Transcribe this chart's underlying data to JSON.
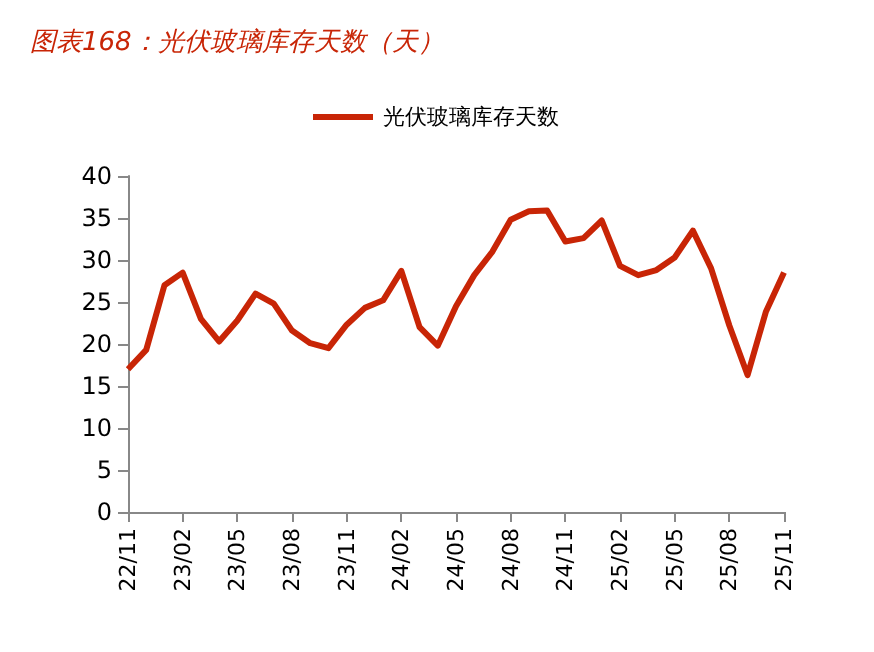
{
  "chart_data": {
    "type": "line",
    "title": "图表168：光伏玻璃库存天数（天）",
    "categories": [
      "22/11",
      null,
      null,
      "23/02",
      null,
      null,
      "23/05",
      null,
      null,
      "23/08",
      null,
      null,
      "23/11",
      null,
      null,
      "24/02",
      null,
      null,
      "24/05",
      null,
      null,
      "24/08",
      null,
      null,
      "24/11",
      null,
      null,
      "25/02",
      null,
      null,
      "25/05",
      null,
      null,
      "25/08",
      null,
      null,
      "25/11"
    ],
    "series": [
      {
        "name": "光伏玻璃库存天数",
        "color": "#c82506",
        "values": [
          17,
          19.3,
          27,
          28.5,
          23,
          20.3,
          22.8,
          26,
          24.8,
          21.6,
          20.1,
          19.5,
          22.3,
          24.3,
          25.2,
          28.7,
          22,
          19.8,
          24.5,
          28.2,
          31,
          34.8,
          35.8,
          35.9,
          32.2,
          32.6,
          34.7,
          29.3,
          28.2,
          28.8,
          30.3,
          33.5,
          29,
          22.2,
          16.3,
          23.8,
          28.5
        ]
      }
    ],
    "ylim": [
      0,
      40
    ],
    "yticks": [
      0,
      5,
      10,
      15,
      20,
      25,
      30,
      35,
      40
    ],
    "grid": false,
    "legend": "top",
    "marker": "none",
    "line_style": "solid"
  }
}
